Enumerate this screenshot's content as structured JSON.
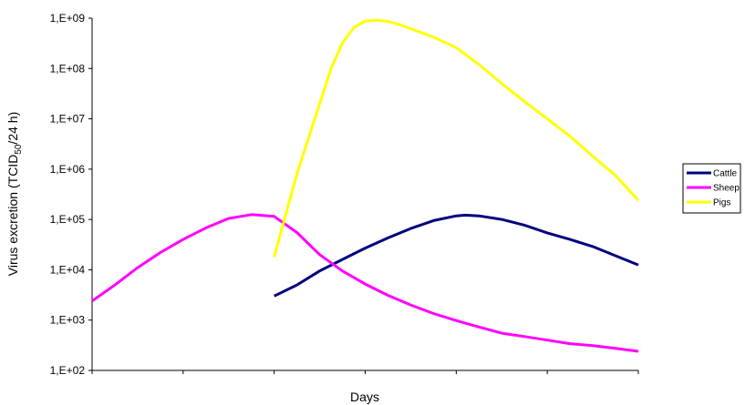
{
  "chart_data": {
    "type": "line",
    "xlabel": "Days",
    "ylabel": {
      "prefix": "Virus excretion (TCID",
      "subscript": "50",
      "suffix": "/24 h)"
    },
    "y_scale": "log",
    "ylim": [
      100,
      1000000000
    ],
    "xlim": [
      0,
      12
    ],
    "x_ticks": [
      0,
      2,
      4,
      6,
      8,
      10,
      12
    ],
    "y_ticks": [
      {
        "value": 100,
        "label": "1,E+02"
      },
      {
        "value": 1000,
        "label": "1,E+03"
      },
      {
        "value": 10000,
        "label": "1,E+04"
      },
      {
        "value": 100000,
        "label": "1,E+05"
      },
      {
        "value": 1000000,
        "label": "1,E+06"
      },
      {
        "value": 10000000,
        "label": "1,E+07"
      },
      {
        "value": 100000000,
        "label": "1,E+08"
      },
      {
        "value": 1000000000,
        "label": "1,E+09"
      }
    ],
    "grid": false,
    "legend_position": "right",
    "series": [
      {
        "name": "Cattle",
        "color": "#000080",
        "x": [
          4,
          4.5,
          5,
          5.5,
          6,
          6.5,
          7,
          7.5,
          8,
          8.2,
          8.5,
          9,
          9.5,
          10,
          10.5,
          11,
          11.5,
          12
        ],
        "y": [
          3000,
          5000,
          9500,
          16000,
          27000,
          43000,
          66000,
          95000,
          118000,
          122000,
          118000,
          100000,
          77000,
          54000,
          40000,
          29000,
          19000,
          12500
        ]
      },
      {
        "name": "Sheep",
        "color": "#ff00ff",
        "x": [
          0,
          0.5,
          1,
          1.5,
          2,
          2.5,
          3,
          3.5,
          4,
          4.5,
          5,
          5.5,
          6,
          6.5,
          7,
          7.5,
          8,
          8.5,
          9,
          9.5,
          10,
          10.5,
          11,
          11.5,
          12
        ],
        "y": [
          2400,
          5000,
          11000,
          22000,
          40000,
          68000,
          105000,
          125000,
          115000,
          55000,
          20000,
          9500,
          5200,
          3100,
          2000,
          1350,
          980,
          730,
          550,
          470,
          400,
          340,
          310,
          275,
          240
        ]
      },
      {
        "name": "Pigs",
        "color": "#ffff00",
        "x": [
          4,
          4.25,
          4.5,
          4.75,
          5,
          5.25,
          5.5,
          5.75,
          6,
          6.25,
          6.5,
          6.75,
          7,
          7.5,
          8,
          8.5,
          9,
          9.5,
          10,
          10.5,
          11,
          11.5,
          12
        ],
        "y": [
          18000,
          120000,
          800000,
          4000000,
          20000000,
          100000000,
          320000000,
          650000000,
          880000000,
          910000000,
          860000000,
          750000000,
          620000000,
          420000000,
          260000000,
          120000000,
          50000000,
          22000000,
          10000000,
          4500000,
          1800000,
          750000,
          240000
        ]
      }
    ]
  }
}
